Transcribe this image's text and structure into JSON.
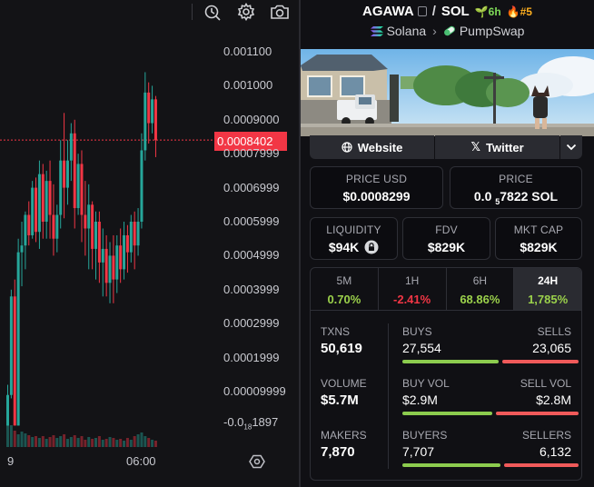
{
  "chart": {
    "price_ticks": [
      "0.001100",
      "0.001000",
      "0.0009000",
      "0.0007999",
      "0.0006999",
      "0.0005999",
      "0.0004999",
      "0.0003999",
      "0.0002999",
      "0.0001999",
      "0.00009999"
    ],
    "negative_tick": {
      "prefix": "-0.0",
      "sub": "18",
      "rest": "1897"
    },
    "current_price": "0.0008402",
    "time_ticks": [
      "9",
      "06:00"
    ],
    "candles": [
      [
        0.0,
        9e-05,
        0.0,
        0.00012
      ],
      [
        9e-05,
        0.00038,
        8e-05,
        0.0004
      ],
      [
        0.00038,
        0.0,
        0.0,
        0.00043
      ],
      [
        0.0,
        0.00051,
        0.0,
        0.00055
      ],
      [
        0.00051,
        0.00053,
        0.00041,
        0.0006
      ],
      [
        0.00053,
        0.00062,
        0.00046,
        0.00063
      ],
      [
        0.00062,
        0.00056,
        0.00053,
        0.00066
      ],
      [
        0.00056,
        0.0007,
        0.00055,
        0.00072
      ],
      [
        0.0007,
        0.00057,
        0.00054,
        0.00073
      ],
      [
        0.00057,
        0.00074,
        0.00052,
        0.00078
      ],
      [
        0.00074,
        0.0006,
        0.00055,
        0.00077
      ],
      [
        0.0006,
        0.00072,
        0.00055,
        0.00075
      ],
      [
        0.00072,
        0.00062,
        0.00055,
        0.00078
      ],
      [
        0.00062,
        0.00055,
        0.0005,
        0.00071
      ],
      [
        0.00055,
        0.00062,
        0.00051,
        0.00065
      ],
      [
        0.00062,
        0.00078,
        0.00058,
        0.00084
      ],
      [
        0.00078,
        0.0007,
        0.00061,
        0.00092
      ],
      [
        0.0007,
        0.00078,
        0.00065,
        0.00084
      ],
      [
        0.00078,
        0.00086,
        0.00072,
        0.00089
      ],
      [
        0.00086,
        0.00064,
        0.00058,
        0.0009
      ],
      [
        0.00064,
        0.00077,
        0.00062,
        0.0008
      ],
      [
        0.00077,
        0.00062,
        0.00054,
        0.00081
      ],
      [
        0.00062,
        0.00058,
        0.0005,
        0.00072
      ],
      [
        0.00058,
        0.00065,
        0.00046,
        0.00071
      ],
      [
        0.00065,
        0.00052,
        0.00046,
        0.00066
      ],
      [
        0.00052,
        0.0006,
        0.00043,
        0.00063
      ],
      [
        0.0006,
        0.00048,
        0.00042,
        0.00063
      ],
      [
        0.00048,
        0.00052,
        0.00038,
        0.00058
      ],
      [
        0.00052,
        0.00042,
        0.00038,
        0.00056
      ],
      [
        0.00042,
        0.0005,
        0.00036,
        0.00054
      ],
      [
        0.0005,
        0.00043,
        0.00036,
        0.00056
      ],
      [
        0.00043,
        0.00053,
        0.00039,
        0.00056
      ],
      [
        0.00053,
        0.00046,
        0.00042,
        0.00058
      ],
      [
        0.00046,
        0.00056,
        0.00043,
        0.0006
      ],
      [
        0.00056,
        0.00051,
        0.00045,
        0.00059
      ],
      [
        0.00051,
        0.0006,
        0.00048,
        0.00062
      ],
      [
        0.0006,
        0.00053,
        0.00046,
        0.00063
      ],
      [
        0.00053,
        0.0006,
        0.0005,
        0.00064
      ],
      [
        0.0006,
        0.00081,
        0.00058,
        0.00086
      ],
      [
        0.00081,
        0.00098,
        0.00078,
        0.00104
      ],
      [
        0.00098,
        0.00089,
        0.00083,
        0.00101
      ],
      [
        0.00089,
        0.00096,
        0.00086,
        0.001
      ],
      [
        0.00096,
        0.00084,
        0.00079,
        0.00097
      ]
    ],
    "volumes": [
      30,
      24,
      18,
      14,
      17,
      15,
      13,
      11,
      12,
      10,
      12,
      9,
      11,
      13,
      10,
      12,
      14,
      9,
      11,
      13,
      10,
      12,
      8,
      11,
      9,
      10,
      12,
      8,
      9,
      11,
      10,
      8,
      9,
      7,
      10,
      8,
      12,
      14,
      16,
      12,
      10,
      8,
      7
    ],
    "colors": {
      "up": "#26a69a",
      "down": "#f23645"
    }
  },
  "pair": {
    "base": "AGAWA",
    "quote": "SOL",
    "age": "6h",
    "rank": "#5",
    "chain": "Solana",
    "dex": "PumpSwap"
  },
  "links": {
    "website": "Website",
    "twitter": "Twitter"
  },
  "price": {
    "usd_label": "PRICE USD",
    "usd_value": "$0.0008299",
    "sol_label": "PRICE",
    "sol_prefix": "0.0",
    "sol_sub": "5",
    "sol_rest": "7822 SOL"
  },
  "metrics": {
    "liquidity_label": "LIQUIDITY",
    "liquidity_value": "$94K",
    "fdv_label": "FDV",
    "fdv_value": "$829K",
    "mktcap_label": "MKT CAP",
    "mktcap_value": "$829K"
  },
  "periods": [
    {
      "name": "5M",
      "change": "0.70%",
      "sign": "pos"
    },
    {
      "name": "1H",
      "change": "-2.41%",
      "sign": "neg"
    },
    {
      "name": "6H",
      "change": "68.86%",
      "sign": "pos"
    },
    {
      "name": "24H",
      "change": "1,785%",
      "sign": "pos"
    }
  ],
  "stats": {
    "txns_label": "TXNS",
    "txns_value": "50,619",
    "buys_label": "BUYS",
    "buys_value": "27,554",
    "sells_label": "SELLS",
    "sells_value": "23,065",
    "volume_label": "VOLUME",
    "volume_value": "$5.7M",
    "buyvol_label": "BUY VOL",
    "buyvol_value": "$2.9M",
    "sellvol_label": "SELL VOL",
    "sellvol_value": "$2.8M",
    "makers_label": "MAKERS",
    "makers_value": "7,870",
    "buyers_label": "BUYERS",
    "buyers_value": "7,707",
    "sellers_label": "SELLERS",
    "sellers_value": "6,132",
    "buy_ratio": 0.544,
    "buyvol_ratio": 0.51,
    "buyers_ratio": 0.557
  }
}
